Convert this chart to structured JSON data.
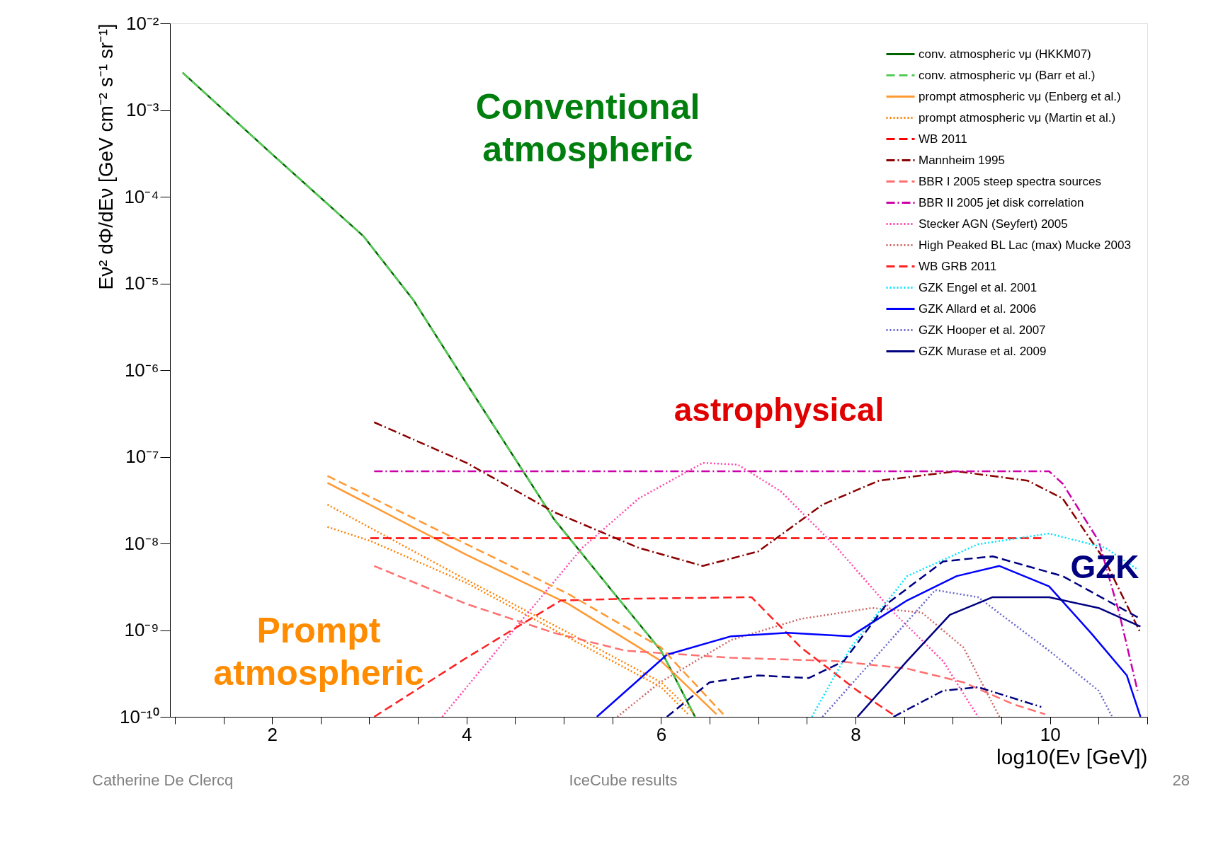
{
  "chart_data": {
    "type": "line",
    "xlabel": "log10(Eν [GeV])",
    "ylabel": "Eν² dΦ/dEν [GeV cm⁻² s⁻¹ sr⁻¹]",
    "log": "y",
    "grid": false,
    "legend": "top right",
    "marker": "none",
    "xlim": [
      0.95,
      11.0
    ],
    "xticks": [
      {
        "value": 1,
        "label": null
      },
      {
        "value": 1.5,
        "label": null
      },
      2,
      {
        "value": 2.5,
        "label": null
      },
      {
        "value": 3,
        "label": null
      },
      {
        "value": 3.5,
        "label": null
      },
      4,
      {
        "value": 4.5,
        "label": null
      },
      {
        "value": 5,
        "label": null
      },
      {
        "value": 5.5,
        "label": null
      },
      6,
      {
        "value": 6.5,
        "label": null
      },
      {
        "value": 7,
        "label": null
      },
      {
        "value": 7.5,
        "label": null
      },
      8,
      {
        "value": 8.5,
        "label": null
      },
      {
        "value": 9,
        "label": null
      },
      {
        "value": 9.5,
        "label": null
      },
      10,
      {
        "value": 10.5,
        "label": null
      },
      {
        "value": 11,
        "label": null
      }
    ],
    "ylim": [
      1e-10,
      0.01
    ],
    "yticks": [
      {
        "value": 1e-10,
        "label": "10⁻¹⁰"
      },
      {
        "value": 1e-09,
        "label": "10⁻⁹"
      },
      {
        "value": 1e-08,
        "label": "10⁻⁸"
      },
      {
        "value": 1e-07,
        "label": "10⁻⁷"
      },
      {
        "value": 1e-06,
        "label": "10⁻⁶"
      },
      {
        "value": 1e-05,
        "label": "10⁻⁵"
      },
      {
        "value": 0.0001,
        "label": "10⁻⁴"
      },
      {
        "value": 0.001,
        "label": "10⁻³"
      },
      {
        "value": 0.01,
        "label": "10⁻²"
      }
    ],
    "annotations": [
      "Conventional atmospheric",
      "astrophysical",
      "Prompt atmospheric",
      "GZK",
      "Catherine De Clercq",
      "IceCube results",
      "28"
    ],
    "series": [
      {
        "name": "conv. atmospheric νμ (HKKM07)",
        "color": "#006400",
        "line_style": "solid",
        "x": [
          1.08,
          2.0,
          2.94,
          3.45,
          4.0,
          4.9,
          5.55,
          6.0,
          6.35
        ],
        "values": [
          0.0027,
          0.00031,
          3.5e-05,
          6.5e-06,
          7e-07,
          1.9e-08,
          2.4e-09,
          5.8e-10,
          1e-10
        ]
      },
      {
        "name": "conv. atmospheric νμ (Barr et al.)",
        "color": "#55cc55",
        "line_style": "dashed",
        "x": [
          1.08,
          2.0,
          2.94,
          3.45,
          4.0,
          4.9,
          5.55,
          6.0,
          6.35
        ],
        "values": [
          0.0027,
          0.00031,
          3.5e-05,
          6.5e-06,
          7e-07,
          1.9e-08,
          2.4e-09,
          5.8e-10,
          1e-10
        ]
      },
      {
        "name": "prompt atmospheric νμ (Enberg et al.)",
        "color": "#ff9933",
        "line_style": "solid",
        "x": [
          2.57,
          4.0,
          5.05,
          6.0,
          6.57
        ],
        "values": [
          5e-08,
          7.4e-09,
          2e-09,
          4.4e-10,
          1.07e-10
        ]
      },
      {
        "name": "prompt atmospheric νμ (Martin et al.)",
        "color": "#ff8000",
        "line_style": "dotted",
        "x": [
          2.57,
          4.0,
          5.05,
          6.0,
          6.35
        ],
        "values": [
          2.8e-08,
          3.8e-09,
          9.3e-10,
          2.5e-10,
          1.07e-10
        ]
      },
      {
        "name": "WB 2011",
        "color": "#ff0000",
        "line_style": "dashed",
        "x": [
          3.01,
          9.91
        ],
        "values": [
          1.15e-08,
          1.15e-08
        ]
      },
      {
        "name": "Mannheim 1995",
        "color": "#8b0000",
        "line_style": "dashdot",
        "x": [
          3.05,
          4.0,
          4.9,
          5.77,
          6.43,
          7.0,
          7.66,
          8.24,
          9.04,
          9.77,
          10.13,
          10.57,
          10.93
        ],
        "values": [
          2.5e-07,
          8.5e-08,
          2.3e-08,
          8.9e-09,
          5.5e-09,
          8.1e-09,
          2.8e-08,
          5.3e-08,
          6.8e-08,
          5.3e-08,
          3.3e-08,
          6.2e-09,
          9.3e-10
        ]
      },
      {
        "name": "BBR I 2005 steep spectra sources",
        "color": "#ff7070",
        "line_style": "dashed",
        "x": [
          3.05,
          4.0,
          4.9,
          5.63,
          6.72,
          7.8,
          8.53,
          9.11,
          9.62,
          9.95
        ],
        "values": [
          5.5e-09,
          2e-09,
          9.3e-10,
          5.8e-10,
          4.8e-10,
          4.4e-10,
          3.6e-10,
          2.5e-10,
          1.4e-10,
          1.07e-10
        ]
      },
      {
        "name": "BBR II 2005 jet disk correlation",
        "color": "#cc00aa",
        "line_style": "dashdot",
        "x": [
          3.05,
          9.99,
          10.13,
          10.5,
          10.71,
          10.9
        ],
        "values": [
          6.8e-08,
          6.8e-08,
          4.9e-08,
          1.07e-08,
          1.6e-09,
          2e-10
        ]
      },
      {
        "name": "Stecker AGN (Seyfert) 2005",
        "color": "#ff44aa",
        "line_style": "dotted",
        "x": [
          3.75,
          4.46,
          5.19,
          5.77,
          6.43,
          6.79,
          7.23,
          7.81,
          8.39,
          8.9,
          9.26
        ],
        "values": [
          1e-10,
          9.3e-10,
          8.9e-09,
          3.3e-08,
          8.5e-08,
          8.1e-08,
          4e-08,
          8.9e-09,
          1.6e-09,
          4.4e-10,
          1e-10
        ]
      },
      {
        "name": "High Peaked BL Lac (max) Mucke 2003",
        "color": "#cc6666",
        "line_style": "dotted",
        "x": [
          5.55,
          5.99,
          6.72,
          7.44,
          8.17,
          8.68,
          9.11,
          9.48
        ],
        "values": [
          1e-10,
          2.5e-10,
          7.7e-10,
          1.35e-09,
          1.8e-09,
          1.6e-09,
          6.3e-10,
          1e-10
        ]
      },
      {
        "name": "WB GRB 2011",
        "color": "#ff2020",
        "line_style": "dashed",
        "x": [
          3.05,
          4.0,
          4.97,
          5.63,
          6.93,
          7.44,
          8.02,
          8.42
        ],
        "values": [
          1e-10,
          4.8e-10,
          2.2e-09,
          2.3e-09,
          2.4e-09,
          6.3e-10,
          2e-10,
          1e-10
        ]
      },
      {
        "name": "GZK Engel et al. 2001",
        "color": "#00e5ff",
        "line_style": "dotted",
        "x": [
          7.55,
          7.95,
          8.53,
          9.26,
          9.99,
          10.57,
          10.9
        ],
        "values": [
          1e-10,
          6.3e-10,
          4.2e-09,
          9.8e-09,
          1.3e-08,
          8.9e-09,
          5e-09
        ]
      },
      {
        "name": "GZK Allard et al. 2006",
        "color": "#0000ff",
        "line_style": "solid",
        "x": [
          5.34,
          6.06,
          6.72,
          7.3,
          7.95,
          8.53,
          9.04,
          9.48,
          9.99,
          10.42,
          10.79,
          10.93
        ],
        "values": [
          1e-10,
          5.2e-10,
          8.5e-10,
          9.3e-10,
          8.5e-10,
          2.2e-09,
          4.2e-09,
          5.5e-09,
          3.2e-09,
          9.3e-10,
          3e-10,
          1e-10
        ]
      },
      {
        "name": "GZK Hooper et al. 2007",
        "color": "#6666cc",
        "line_style": "dotted",
        "x": [
          7.66,
          8.17,
          8.82,
          9.26,
          9.99,
          10.5,
          10.64
        ],
        "values": [
          1e-10,
          4.4e-10,
          2.9e-09,
          2.4e-09,
          5.8e-10,
          2e-10,
          1e-10
        ]
      },
      {
        "name": "GZK Murase et al. 2009",
        "color": "#000080",
        "line_style": "solid",
        "x": [
          8.02,
          8.53,
          8.97,
          9.41,
          9.99,
          10.5,
          10.93
        ],
        "values": [
          1e-10,
          4.4e-10,
          1.5e-09,
          2.4e-09,
          2.4e-09,
          1.8e-09,
          1.1e-09
        ]
      },
      {
        "color": "#ff9933",
        "line_style": "dashed",
        "x": [
          2.57,
          4.0,
          5.05,
          6.0,
          6.64
        ],
        "values": [
          6e-08,
          9.8e-09,
          2.6e-09,
          6.3e-10,
          1.07e-10
        ]
      },
      {
        "color": "#ff8000",
        "line_style": "dotted",
        "x": [
          2.57,
          3.01,
          4.0,
          6.0,
          6.28
        ],
        "values": [
          1.55e-08,
          1.07e-08,
          3.5e-09,
          2.2e-10,
          1.07e-10
        ]
      },
      {
        "color": "#000080",
        "line_style": "dashed",
        "x": [
          6.06,
          6.5,
          7.0,
          7.52,
          7.88,
          8.32,
          8.9,
          9.41,
          10.13,
          10.93
        ],
        "values": [
          1e-10,
          2.5e-10,
          3e-10,
          2.8e-10,
          4.4e-10,
          2e-09,
          6.2e-09,
          7.1e-09,
          4.2e-09,
          1.35e-09
        ]
      },
      {
        "color": "#000080",
        "line_style": "dashdot",
        "x": [
          8.39,
          8.9,
          9.26,
          9.91
        ],
        "values": [
          1e-10,
          2e-10,
          2.2e-10,
          1.3e-10
        ]
      }
    ]
  }
}
